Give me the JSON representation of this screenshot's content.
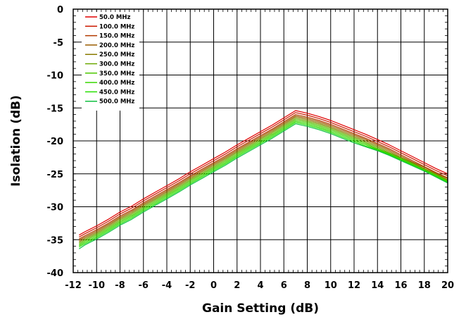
{
  "chart_data": {
    "type": "line",
    "title": "",
    "xlabel": "Gain Setting (dB)",
    "ylabel": "Isolation (dB)",
    "xlim": [
      -12,
      20
    ],
    "ylim": [
      -40,
      0
    ],
    "x_ticks": [
      -12,
      -10,
      -8,
      -6,
      -4,
      -2,
      0,
      2,
      4,
      6,
      8,
      10,
      12,
      14,
      16,
      18,
      20
    ],
    "y_ticks": [
      0,
      -5,
      -10,
      -15,
      -20,
      -25,
      -30,
      -35,
      -40
    ],
    "grid": true,
    "legend_position": "top-left",
    "x": [
      -11.5,
      -11,
      -10,
      -9,
      -8,
      -7,
      -6,
      -5,
      -4,
      -3,
      -2,
      -1,
      0,
      1,
      2,
      3,
      4,
      5,
      6,
      7,
      8,
      9,
      10,
      11,
      12,
      13,
      14,
      15,
      16,
      17,
      18,
      19,
      20
    ],
    "series": [
      {
        "name": "50.0 MHz",
        "color": "#e00000",
        "values": [
          -34.3,
          -33.8,
          -32.9,
          -31.9,
          -30.8,
          -29.9,
          -28.8,
          -27.8,
          -26.8,
          -25.8,
          -24.7,
          -23.7,
          -22.7,
          -21.7,
          -20.6,
          -19.6,
          -18.6,
          -17.6,
          -16.5,
          -15.4,
          -15.8,
          -16.3,
          -16.9,
          -17.6,
          -18.3,
          -19.0,
          -19.8,
          -20.6,
          -21.5,
          -22.4,
          -23.3,
          -24.2,
          -25.0
        ]
      },
      {
        "name": "100.0 MHz",
        "color": "#cc1a00",
        "values": [
          -34.6,
          -34.1,
          -33.2,
          -32.2,
          -31.1,
          -30.2,
          -29.1,
          -28.1,
          -27.1,
          -26.1,
          -25.0,
          -24.0,
          -23.0,
          -22.0,
          -20.9,
          -19.9,
          -18.9,
          -17.9,
          -16.8,
          -15.7,
          -16.1,
          -16.6,
          -17.2,
          -17.9,
          -18.6,
          -19.3,
          -20.1,
          -20.9,
          -21.8,
          -22.7,
          -23.6,
          -24.5,
          -25.3
        ]
      },
      {
        "name": "150.0 MHz",
        "color": "#b33a00",
        "values": [
          -34.9,
          -34.4,
          -33.5,
          -32.5,
          -31.4,
          -30.5,
          -29.4,
          -28.4,
          -27.4,
          -26.4,
          -25.3,
          -24.3,
          -23.3,
          -22.3,
          -21.2,
          -20.2,
          -19.2,
          -18.2,
          -17.1,
          -16.0,
          -16.4,
          -16.9,
          -17.5,
          -18.2,
          -18.9,
          -19.6,
          -20.4,
          -21.2,
          -22.1,
          -23.0,
          -23.9,
          -24.8,
          -25.6
        ]
      },
      {
        "name": "200.0 MHz",
        "color": "#9a5c00",
        "values": [
          -35.1,
          -34.6,
          -33.7,
          -32.7,
          -31.6,
          -30.7,
          -29.6,
          -28.6,
          -27.6,
          -26.6,
          -25.5,
          -24.5,
          -23.5,
          -22.5,
          -21.4,
          -20.4,
          -19.4,
          -18.4,
          -17.3,
          -16.2,
          -16.6,
          -17.1,
          -17.7,
          -18.4,
          -19.1,
          -19.8,
          -20.6,
          -21.4,
          -22.3,
          -23.2,
          -24.0,
          -24.9,
          -25.7
        ]
      },
      {
        "name": "250.0 MHz",
        "color": "#8a7a00",
        "values": [
          -35.3,
          -34.8,
          -33.9,
          -32.9,
          -31.8,
          -30.9,
          -29.8,
          -28.8,
          -27.8,
          -26.8,
          -25.7,
          -24.7,
          -23.7,
          -22.7,
          -21.6,
          -20.6,
          -19.6,
          -18.6,
          -17.5,
          -16.4,
          -16.8,
          -17.3,
          -17.9,
          -18.6,
          -19.3,
          -20.0,
          -20.8,
          -21.6,
          -22.5,
          -23.3,
          -24.2,
          -25.0,
          -25.9
        ]
      },
      {
        "name": "300.0 MHz",
        "color": "#6aa800",
        "values": [
          -35.5,
          -35.0,
          -34.1,
          -33.1,
          -32.0,
          -31.1,
          -30.0,
          -29.0,
          -28.0,
          -27.0,
          -25.9,
          -24.9,
          -23.9,
          -22.9,
          -21.8,
          -20.8,
          -19.8,
          -18.8,
          -17.7,
          -16.6,
          -17.0,
          -17.5,
          -18.1,
          -18.8,
          -19.5,
          -20.2,
          -21.0,
          -21.8,
          -22.6,
          -23.4,
          -24.3,
          -25.1,
          -26.0
        ]
      },
      {
        "name": "350.0 MHz",
        "color": "#4cc800",
        "values": [
          -35.7,
          -35.2,
          -34.3,
          -33.3,
          -32.2,
          -31.3,
          -30.2,
          -29.2,
          -28.2,
          -27.2,
          -26.1,
          -25.1,
          -24.1,
          -23.1,
          -22.0,
          -21.0,
          -20.0,
          -19.0,
          -17.9,
          -16.8,
          -17.2,
          -17.7,
          -18.3,
          -19.0,
          -19.7,
          -20.4,
          -21.2,
          -21.9,
          -22.7,
          -23.5,
          -24.4,
          -25.2,
          -26.1
        ]
      },
      {
        "name": "400.0 MHz",
        "color": "#38d600",
        "values": [
          -35.9,
          -35.4,
          -34.5,
          -33.5,
          -32.4,
          -31.5,
          -30.4,
          -29.4,
          -28.4,
          -27.4,
          -26.3,
          -25.3,
          -24.3,
          -23.3,
          -22.2,
          -21.2,
          -20.2,
          -19.2,
          -18.1,
          -17.0,
          -17.4,
          -17.9,
          -18.5,
          -19.2,
          -19.9,
          -20.6,
          -21.3,
          -22.0,
          -22.8,
          -23.6,
          -24.5,
          -25.3,
          -26.2
        ]
      },
      {
        "name": "450.0 MHz",
        "color": "#26e000",
        "values": [
          -36.1,
          -35.6,
          -34.7,
          -33.7,
          -32.6,
          -31.7,
          -30.6,
          -29.6,
          -28.6,
          -27.6,
          -26.5,
          -25.5,
          -24.5,
          -23.5,
          -22.4,
          -21.4,
          -20.4,
          -19.4,
          -18.3,
          -17.2,
          -17.6,
          -18.1,
          -18.7,
          -19.4,
          -20.1,
          -20.8,
          -21.4,
          -22.1,
          -22.9,
          -23.7,
          -24.5,
          -25.4,
          -26.3
        ]
      },
      {
        "name": "500.0 MHz",
        "color": "#10c040",
        "values": [
          -36.4,
          -35.8,
          -34.9,
          -33.9,
          -32.8,
          -31.9,
          -30.8,
          -29.8,
          -28.8,
          -27.8,
          -26.7,
          -25.7,
          -24.7,
          -23.7,
          -22.6,
          -21.6,
          -20.6,
          -19.6,
          -18.5,
          -17.4,
          -17.8,
          -18.3,
          -18.9,
          -19.6,
          -20.3,
          -20.9,
          -21.5,
          -22.2,
          -23.0,
          -23.8,
          -24.6,
          -25.5,
          -26.4
        ]
      }
    ]
  }
}
